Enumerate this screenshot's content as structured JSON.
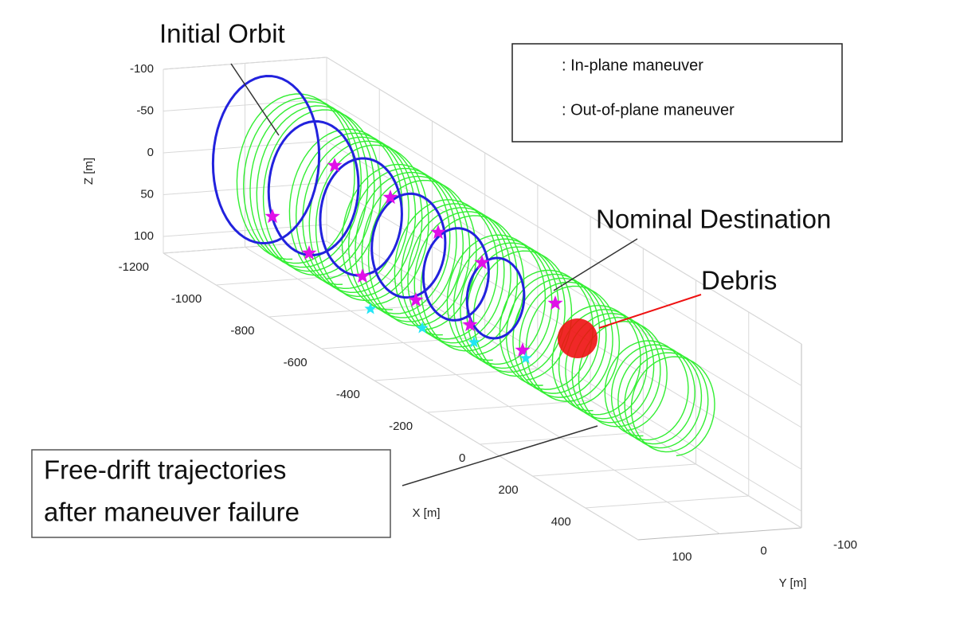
{
  "chart_data": {
    "type": "trajectory3d",
    "xlabel": "X [m]",
    "ylabel": "Y [m]",
    "zlabel": "Z [m]",
    "xlim": [
      -1200,
      600
    ],
    "ylim": [
      100,
      -100
    ],
    "zlim": [
      -100,
      120
    ],
    "xticks": [
      -1200,
      -1000,
      -800,
      -600,
      -400,
      -200,
      0,
      200,
      400
    ],
    "yticks": [
      100,
      0,
      -100
    ],
    "zticks": [
      -100,
      -50,
      0,
      50,
      100
    ],
    "grid": true,
    "legend": [
      {
        "name": ": In-plane  maneuver",
        "color": "#22e5f5"
      },
      {
        "name": ": Out-of-plane  maneuver",
        "color": "#e010e8"
      }
    ],
    "orbit_colors": {
      "planned": "#2222dd",
      "free_drift": "#33ee33",
      "debris": "#ee1111"
    },
    "annotations": {
      "initial_orbit": "Initial Orbit",
      "nominal_destination": "Nominal Destination",
      "debris": "Debris",
      "free_drift": [
        "Free-drift trajectories",
        "after maneuver failure"
      ]
    }
  }
}
